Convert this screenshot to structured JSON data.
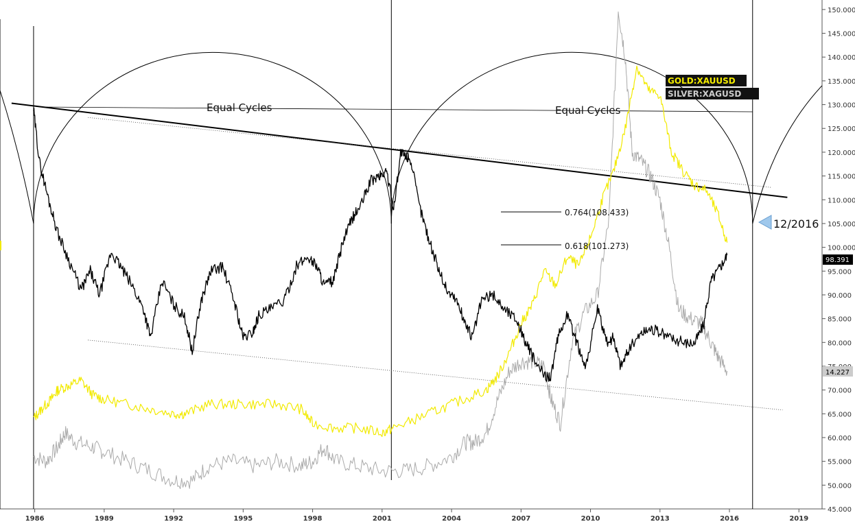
{
  "chart_data": {
    "type": "line",
    "title": "",
    "xlabel": "",
    "ylabel": "",
    "xlim": [
      1984.5,
      2020.0
    ],
    "ylim": [
      45,
      152
    ],
    "x_ticks": [
      "1986",
      "1989",
      "1992",
      "1995",
      "1998",
      "2001",
      "2004",
      "2007",
      "2010",
      "2013",
      "2016",
      "2019"
    ],
    "y_ticks": [
      "45.000",
      "50.000",
      "55.000",
      "60.000",
      "65.000",
      "70.000",
      "75.000",
      "80.000",
      "85.000",
      "90.000",
      "95.000",
      "100.000",
      "105.000",
      "110.000",
      "115.000",
      "120.000",
      "125.000",
      "130.000",
      "135.000",
      "140.000",
      "145.000",
      "150.000"
    ],
    "legend": [
      "GOLD:XAUUSD",
      "SILVER:XAGUSD"
    ],
    "colors": {
      "main": "#000000",
      "gold": "#f2ea00",
      "silver": "#aaaaaa",
      "marker": "#9fc8ec"
    },
    "series": [
      {
        "key": "main",
        "x": [
          1985.95,
          1986.2,
          1986.6,
          1987.0,
          1987.5,
          1988.0,
          1988.4,
          1988.8,
          1989.3,
          1989.7,
          1990.2,
          1990.7,
          1991.0,
          1991.5,
          1992.0,
          1992.5,
          1992.8,
          1993.2,
          1993.6,
          1994.1,
          1994.6,
          1995.0,
          1995.4,
          1995.7,
          1996.2,
          1996.8,
          1997.3,
          1997.8,
          1998.2,
          1998.5,
          1998.9,
          1999.3,
          1999.7,
          2000.1,
          2000.5,
          2000.9,
          2001.2,
          2001.5,
          2001.8,
          2002.0,
          2002.2,
          2002.6,
          2003.0,
          2003.4,
          2003.8,
          2004.2,
          2004.6,
          2004.9,
          2005.3,
          2005.8,
          2006.3,
          2006.8,
          2007.2,
          2007.6,
          2008.0,
          2008.3,
          2008.6,
          2009.0,
          2009.4,
          2009.8,
          2010.3,
          2010.7,
          2011.0,
          2011.3,
          2011.7,
          2012.2,
          2012.6,
          2013.0,
          2013.5,
          2014.0,
          2014.5,
          2014.9,
          2015.2,
          2015.6,
          2015.9
        ],
        "values": [
          129,
          118,
          110,
          103,
          97,
          91,
          95,
          90,
          99,
          96,
          92,
          87,
          81,
          93,
          88,
          85,
          78,
          89,
          95,
          96,
          89,
          81,
          82,
          86,
          87,
          89,
          96,
          98,
          96,
          92,
          93,
          101,
          106,
          109,
          114,
          115,
          116,
          108,
          120,
          119,
          119,
          109,
          102,
          96,
          91,
          89,
          84,
          81,
          89,
          90,
          87,
          85,
          80,
          76,
          73,
          73,
          81,
          86,
          80,
          75,
          87,
          80,
          81,
          75,
          79,
          82,
          83,
          82,
          81,
          80,
          80,
          84,
          93,
          96,
          98.391
        ]
      },
      {
        "key": "gold",
        "x": [
          1985.95,
          1986.3,
          1986.7,
          1987.0,
          1987.5,
          1988.0,
          1988.5,
          1989.0,
          1990.0,
          1991.0,
          1992.0,
          1992.5,
          1993.5,
          1994.5,
          1995.5,
          1996.5,
          1997.5,
          1998.0,
          1999.0,
          2000.0,
          2001.0,
          2001.5,
          2002.5,
          2003.5,
          2004.5,
          2005.5,
          2006.0,
          2006.5,
          2007.0,
          2007.5,
          2008.0,
          2008.5,
          2009.0,
          2009.5,
          2010.0,
          2010.5,
          2011.0,
          2011.5,
          2012.0,
          2012.5,
          2013.0,
          2013.5,
          2014.0,
          2014.5,
          2015.0,
          2015.5,
          2015.9
        ],
        "values": [
          64,
          66,
          68,
          70,
          71,
          72,
          69,
          68,
          67,
          66,
          65,
          65,
          67,
          67,
          67,
          67,
          66,
          63,
          62,
          62,
          61,
          62,
          64,
          66,
          68,
          70,
          73,
          78,
          84,
          88,
          95,
          92,
          98,
          96,
          102,
          110,
          116,
          125,
          138,
          133,
          132,
          120,
          116,
          113,
          112,
          107,
          101
        ]
      },
      {
        "key": "silver",
        "x": [
          1985.95,
          1986.5,
          1987.0,
          1987.3,
          1987.8,
          1988.5,
          1989.0,
          1990.0,
          1991.0,
          1992.0,
          1992.8,
          1993.5,
          1994.5,
          1995.5,
          1996.5,
          1997.5,
          1998.0,
          1998.5,
          1999.0,
          2000.0,
          2001.0,
          2002.0,
          2003.0,
          2004.0,
          2004.6,
          2005.0,
          2005.5,
          2006.0,
          2006.5,
          2007.0,
          2007.5,
          2008.0,
          2008.3,
          2008.7,
          2009.2,
          2009.7,
          2010.3,
          2010.8,
          2011.2,
          2011.5,
          2011.8,
          2012.2,
          2012.6,
          2013.0,
          2013.4,
          2013.8,
          2014.3,
          2014.8,
          2015.2,
          2015.5,
          2015.9
        ],
        "values": [
          56,
          55,
          58,
          61,
          59,
          58,
          57,
          55,
          53,
          51,
          51,
          54,
          55,
          54,
          55,
          54,
          55,
          58,
          55,
          54,
          53,
          53,
          54,
          56,
          59,
          59,
          61,
          68,
          74,
          76,
          76,
          75,
          68,
          63,
          80,
          86,
          90,
          106,
          150,
          140,
          120,
          118,
          115,
          110,
          100,
          87,
          85,
          84,
          80,
          77,
          74
        ]
      }
    ],
    "current_values": {
      "main": "98.391",
      "silver": "14.227"
    },
    "annotations": {
      "equal_cycles_1": "Equal Cycles",
      "equal_cycles_2": "Equal Cycles",
      "fib_764": "0.764(108.433)",
      "fib_618": "0.618(101.273)",
      "date_marker": "12/2016"
    }
  }
}
